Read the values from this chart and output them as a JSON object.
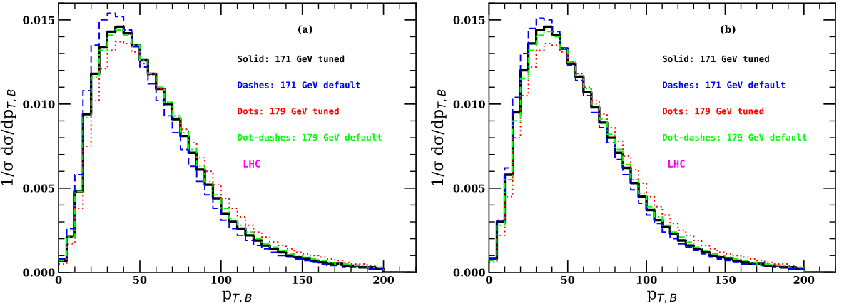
{
  "chart_data": [
    {
      "type": "step",
      "xlabel": "p$_{T,B}$",
      "ylabel": "1/σ dσ/dp$_{T,B}$",
      "xlim": [
        0,
        220
      ],
      "ylim": [
        0,
        0.016
      ],
      "xticks": [
        0,
        50,
        100,
        150,
        200
      ],
      "yticks": [
        {
          "value": 0,
          "label": "0.000"
        },
        {
          "value": 0.005,
          "label": "0.005"
        },
        {
          "value": 0.01,
          "label": "0.010"
        },
        {
          "value": 0.015,
          "label": "0.015"
        }
      ],
      "legend": "top right",
      "grid": false,
      "annotations": [
        "(a)",
        "LHC"
      ],
      "x": [
        0,
        5,
        10,
        15,
        20,
        25,
        30,
        35,
        40,
        45,
        50,
        55,
        60,
        65,
        70,
        75,
        80,
        85,
        90,
        95,
        100,
        105,
        110,
        115,
        120,
        125,
        130,
        135,
        140,
        145,
        150,
        155,
        160,
        165,
        170,
        175,
        180,
        185,
        190,
        195,
        200,
        220
      ],
      "series": [
        {
          "name": "Solid: 171 GeV tuned",
          "color": "#000000",
          "line_style": "solid",
          "values": [
            0.0007,
            0.0021,
            0.0048,
            0.0094,
            0.0118,
            0.0134,
            0.0143,
            0.0146,
            0.0142,
            0.0135,
            0.0126,
            0.0118,
            0.0109,
            0.01,
            0.0091,
            0.0081,
            0.0071,
            0.0061,
            0.0052,
            0.0044,
            0.0035,
            0.003,
            0.0026,
            0.0022,
            0.0019,
            0.0016,
            0.0014,
            0.0012,
            0.001,
            0.0009,
            0.0008,
            0.0007,
            0.0006,
            0.0005,
            0.0005,
            0.0004,
            0.0004,
            0.0003,
            0.0003,
            0.0002,
            0,
            0
          ]
        },
        {
          "name": "Dashes: 171 GeV default",
          "color": "#0000ff",
          "line_style": "dashed",
          "values": [
            0.0008,
            0.0026,
            0.0058,
            0.0108,
            0.0135,
            0.015,
            0.0154,
            0.0152,
            0.0144,
            0.0134,
            0.0122,
            0.0112,
            0.0102,
            0.0093,
            0.0083,
            0.0073,
            0.0063,
            0.0054,
            0.0046,
            0.0038,
            0.0031,
            0.0026,
            0.0022,
            0.0019,
            0.0016,
            0.0014,
            0.0012,
            0.001,
            0.0009,
            0.0008,
            0.0007,
            0.0006,
            0.0005,
            0.0004,
            0.0004,
            0.0003,
            0.0003,
            0.0003,
            0.0002,
            0.0002,
            0,
            0
          ]
        },
        {
          "name": "Dots: 179 GeV tuned",
          "color": "#ff0000",
          "line_style": "dotted",
          "values": [
            0.0005,
            0.0017,
            0.0038,
            0.0075,
            0.0102,
            0.0121,
            0.0132,
            0.0137,
            0.0136,
            0.0131,
            0.0124,
            0.0117,
            0.0109,
            0.0101,
            0.0093,
            0.0085,
            0.0077,
            0.0068,
            0.006,
            0.0052,
            0.0044,
            0.0038,
            0.0033,
            0.0028,
            0.0024,
            0.0021,
            0.0018,
            0.0016,
            0.0014,
            0.0012,
            0.0011,
            0.001,
            0.0009,
            0.0008,
            0.0007,
            0.0006,
            0.0005,
            0.0005,
            0.0004,
            0.0003,
            0,
            0
          ]
        },
        {
          "name": "Dot-dashes: 179 GeV default",
          "color": "#00ff00",
          "line_style": "dashdot",
          "values": [
            0.0007,
            0.0021,
            0.0048,
            0.0092,
            0.0116,
            0.0132,
            0.0141,
            0.0144,
            0.0141,
            0.0135,
            0.0126,
            0.0118,
            0.011,
            0.0101,
            0.0092,
            0.0083,
            0.0073,
            0.0063,
            0.0054,
            0.0046,
            0.0038,
            0.0032,
            0.0028,
            0.0024,
            0.002,
            0.0017,
            0.0015,
            0.0013,
            0.0011,
            0.001,
            0.0009,
            0.0008,
            0.0007,
            0.0006,
            0.0005,
            0.0005,
            0.0004,
            0.0004,
            0.0003,
            0.0003,
            0,
            0
          ]
        }
      ]
    },
    {
      "type": "step",
      "xlabel": "p$_{T,B}$",
      "ylabel": "1/σ dσ/dp$_{T,B}$",
      "xlim": [
        0,
        220
      ],
      "ylim": [
        0,
        0.016
      ],
      "xticks": [
        0,
        50,
        100,
        150,
        200
      ],
      "yticks": [
        {
          "value": 0,
          "label": "0.000"
        },
        {
          "value": 0.005,
          "label": "0.005"
        },
        {
          "value": 0.01,
          "label": "0.010"
        },
        {
          "value": 0.015,
          "label": "0.015"
        }
      ],
      "legend": "top right",
      "grid": false,
      "annotations": [
        "(b)",
        "LHC"
      ],
      "x": [
        0,
        5,
        10,
        15,
        20,
        25,
        30,
        35,
        40,
        45,
        50,
        55,
        60,
        65,
        70,
        75,
        80,
        85,
        90,
        95,
        100,
        105,
        110,
        115,
        120,
        125,
        130,
        135,
        140,
        145,
        150,
        155,
        160,
        165,
        170,
        175,
        180,
        185,
        190,
        195,
        200,
        220
      ],
      "series": [
        {
          "name": "Solid: 171 GeV tuned",
          "color": "#000000",
          "line_style": "solid",
          "values": [
            0.0008,
            0.003,
            0.0058,
            0.0095,
            0.012,
            0.0136,
            0.0144,
            0.0146,
            0.0141,
            0.0133,
            0.0124,
            0.0116,
            0.0107,
            0.0098,
            0.0089,
            0.008,
            0.0071,
            0.0062,
            0.0053,
            0.0045,
            0.0037,
            0.0031,
            0.0027,
            0.0023,
            0.0019,
            0.0016,
            0.0014,
            0.0012,
            0.001,
            0.0009,
            0.0008,
            0.0007,
            0.0006,
            0.0005,
            0.0005,
            0.0004,
            0.0004,
            0.0003,
            0.0003,
            0.0002,
            0,
            0
          ]
        },
        {
          "name": "Dashes: 171 GeV default",
          "color": "#0000ff",
          "line_style": "dashed",
          "values": [
            0.0008,
            0.0031,
            0.0062,
            0.0104,
            0.013,
            0.0145,
            0.0151,
            0.015,
            0.0143,
            0.0133,
            0.0123,
            0.0114,
            0.0105,
            0.0095,
            0.0086,
            0.0077,
            0.0067,
            0.0058,
            0.0049,
            0.0041,
            0.0034,
            0.0029,
            0.0024,
            0.002,
            0.0017,
            0.0015,
            0.0013,
            0.0011,
            0.0009,
            0.0008,
            0.0007,
            0.0006,
            0.0005,
            0.0005,
            0.0004,
            0.0004,
            0.0003,
            0.0003,
            0.0002,
            0.0002,
            0,
            0
          ]
        },
        {
          "name": "Dots: 179 GeV tuned",
          "color": "#ff0000",
          "line_style": "dotted",
          "values": [
            0.0006,
            0.0022,
            0.0045,
            0.008,
            0.0105,
            0.0122,
            0.0132,
            0.0136,
            0.0135,
            0.0131,
            0.0125,
            0.0118,
            0.011,
            0.0102,
            0.0094,
            0.0086,
            0.0078,
            0.0069,
            0.0061,
            0.0053,
            0.0045,
            0.0039,
            0.0034,
            0.0029,
            0.0025,
            0.0022,
            0.0019,
            0.0016,
            0.0014,
            0.0012,
            0.0011,
            0.001,
            0.0009,
            0.0008,
            0.0007,
            0.0006,
            0.0005,
            0.0005,
            0.0004,
            0.0003,
            0,
            0
          ]
        },
        {
          "name": "Dot-dashes: 179 GeV default",
          "color": "#00ff00",
          "line_style": "dashdot",
          "values": [
            0.0007,
            0.0028,
            0.0055,
            0.009,
            0.0115,
            0.0132,
            0.0141,
            0.0143,
            0.014,
            0.0133,
            0.0125,
            0.0117,
            0.0109,
            0.01,
            0.0091,
            0.0082,
            0.0073,
            0.0064,
            0.0055,
            0.0047,
            0.0039,
            0.0033,
            0.0028,
            0.0024,
            0.0021,
            0.0018,
            0.0015,
            0.0013,
            0.0011,
            0.001,
            0.0009,
            0.0008,
            0.0007,
            0.0006,
            0.0005,
            0.0005,
            0.0004,
            0.0004,
            0.0003,
            0.0003,
            0,
            0
          ]
        }
      ]
    }
  ]
}
